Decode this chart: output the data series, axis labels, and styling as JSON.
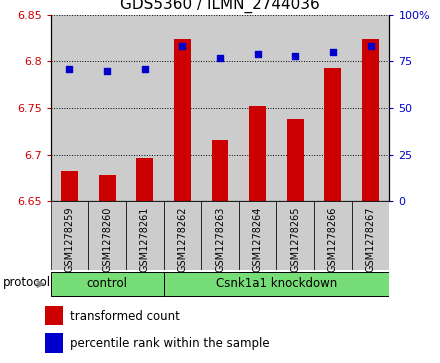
{
  "title": "GDS5360 / ILMN_2744036",
  "samples": [
    "GSM1278259",
    "GSM1278260",
    "GSM1278261",
    "GSM1278262",
    "GSM1278263",
    "GSM1278264",
    "GSM1278265",
    "GSM1278266",
    "GSM1278267"
  ],
  "transformed_count": [
    6.683,
    6.678,
    6.697,
    6.824,
    6.716,
    6.752,
    6.738,
    6.793,
    6.824
  ],
  "percentile_rank": [
    71,
    70,
    71,
    83,
    77,
    79,
    78,
    80,
    83
  ],
  "ylim_left": [
    6.65,
    6.85
  ],
  "ylim_right": [
    0,
    100
  ],
  "yticks_left": [
    6.65,
    6.7,
    6.75,
    6.8,
    6.85
  ],
  "yticks_right": [
    0,
    25,
    50,
    75,
    100
  ],
  "bar_color": "#cc0000",
  "dot_color": "#0000cc",
  "bar_bottom": 6.65,
  "control_count": 3,
  "control_label": "control",
  "knockdown_label": "Csnk1a1 knockdown",
  "protocol_label": "protocol",
  "legend_bar_label": "transformed count",
  "legend_dot_label": "percentile rank within the sample",
  "group_color": "#77dd77",
  "sample_bg_color": "#cccccc",
  "title_fontsize": 11,
  "tick_fontsize": 8,
  "sample_fontsize": 7
}
